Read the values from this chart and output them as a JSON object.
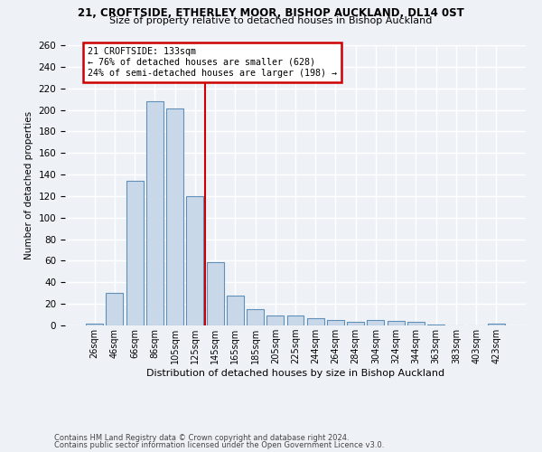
{
  "title1": "21, CROFTSIDE, ETHERLEY MOOR, BISHOP AUCKLAND, DL14 0ST",
  "title2": "Size of property relative to detached houses in Bishop Auckland",
  "xlabel": "Distribution of detached houses by size in Bishop Auckland",
  "ylabel": "Number of detached properties",
  "bar_labels": [
    "26sqm",
    "46sqm",
    "66sqm",
    "86sqm",
    "105sqm",
    "125sqm",
    "145sqm",
    "165sqm",
    "185sqm",
    "205sqm",
    "225sqm",
    "244sqm",
    "264sqm",
    "284sqm",
    "304sqm",
    "324sqm",
    "344sqm",
    "363sqm",
    "383sqm",
    "403sqm",
    "423sqm"
  ],
  "bar_values": [
    2,
    30,
    134,
    208,
    201,
    120,
    59,
    28,
    15,
    9,
    9,
    7,
    5,
    3,
    5,
    4,
    3,
    1,
    0,
    0,
    2
  ],
  "bar_color": "#c8d8e8",
  "bar_edge_color": "#6090b8",
  "vline_x": 5.5,
  "vline_color": "#cc0000",
  "annotation_line1": "21 CROFTSIDE: 133sqm",
  "annotation_line2": "← 76% of detached houses are smaller (628)",
  "annotation_line3": "24% of semi-detached houses are larger (198) →",
  "annotation_box_color": "#cc0000",
  "ylim": [
    0,
    260
  ],
  "yticks": [
    0,
    20,
    40,
    60,
    80,
    100,
    120,
    140,
    160,
    180,
    200,
    220,
    240,
    260
  ],
  "footnote1": "Contains HM Land Registry data © Crown copyright and database right 2024.",
  "footnote2": "Contains public sector information licensed under the Open Government Licence v3.0.",
  "bg_color": "#eef2f7",
  "grid_color": "#ffffff"
}
